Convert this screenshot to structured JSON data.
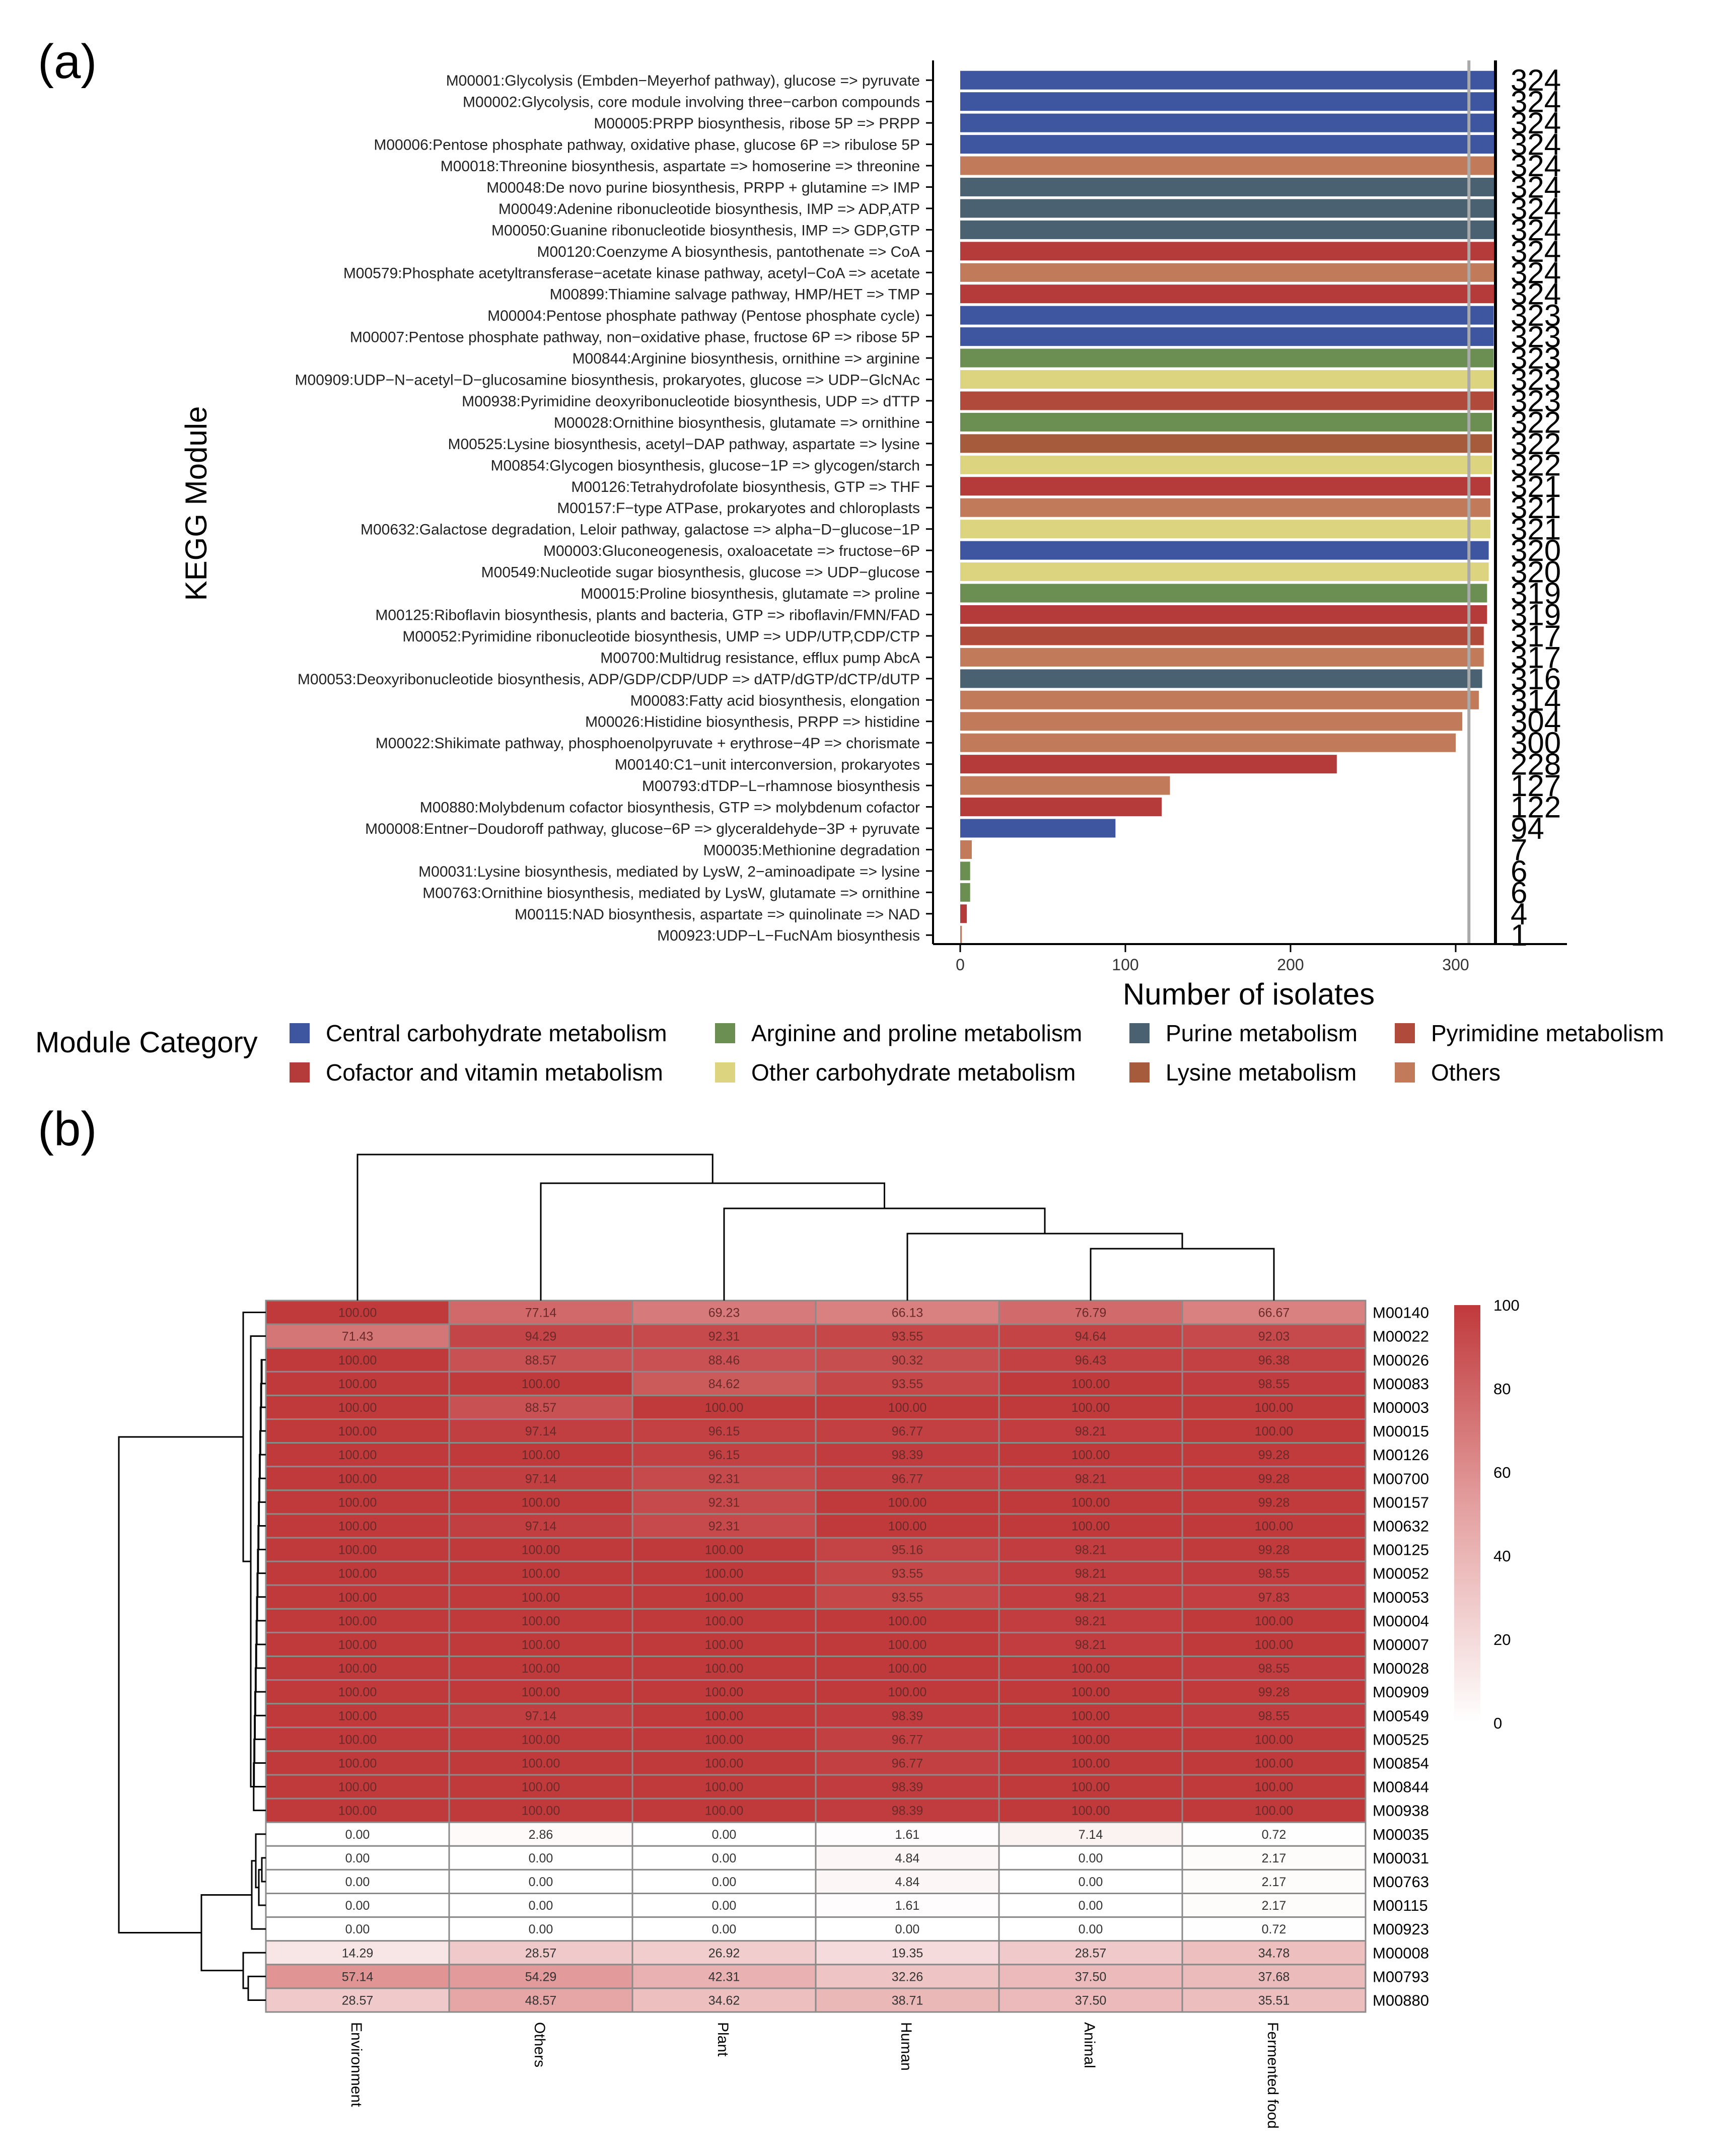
{
  "panel_a": {
    "label": "(a)"
  },
  "panel_b": {
    "label": "(b)"
  },
  "chart_data": [
    {
      "type": "bar",
      "orientation": "horizontal",
      "ylabel": "KEGG Module",
      "xlabel": "Number of isolates",
      "xlim": [
        0,
        360
      ],
      "xticks": [
        0,
        100,
        200,
        300
      ],
      "reference_line": 308,
      "legend_title": "Module Category",
      "legend_position": "bottom",
      "categories": [
        {
          "name": "Central carbohydrate metabolism",
          "color": "#3E56A0"
        },
        {
          "name": "Arginine and proline metabolism",
          "color": "#6B8E52"
        },
        {
          "name": "Purine metabolism",
          "color": "#4A6172"
        },
        {
          "name": "Pyrimidine metabolism",
          "color": "#B04A3A"
        },
        {
          "name": "Cofactor and vitamin metabolism",
          "color": "#B53A3A"
        },
        {
          "name": "Other carbohydrate metabolism",
          "color": "#DDD480"
        },
        {
          "name": "Lysine metabolism",
          "color": "#A65C3C"
        },
        {
          "name": "Others",
          "color": "#C27B5A"
        }
      ],
      "bars": [
        {
          "label": "M00001:Glycolysis (Embden−Meyerhof pathway), glucose => pyruvate",
          "value": 324,
          "category": "Central carbohydrate metabolism"
        },
        {
          "label": "M00002:Glycolysis, core module involving three−carbon compounds",
          "value": 324,
          "category": "Central carbohydrate metabolism"
        },
        {
          "label": "M00005:PRPP biosynthesis, ribose 5P => PRPP",
          "value": 324,
          "category": "Central carbohydrate metabolism"
        },
        {
          "label": "M00006:Pentose phosphate pathway, oxidative phase, glucose 6P => ribulose 5P",
          "value": 324,
          "category": "Central carbohydrate metabolism"
        },
        {
          "label": "M00018:Threonine biosynthesis, aspartate => homoserine => threonine",
          "value": 324,
          "category": "Others"
        },
        {
          "label": "M00048:De novo purine biosynthesis, PRPP + glutamine => IMP",
          "value": 324,
          "category": "Purine metabolism"
        },
        {
          "label": "M00049:Adenine ribonucleotide biosynthesis, IMP => ADP,ATP",
          "value": 324,
          "category": "Purine metabolism"
        },
        {
          "label": "M00050:Guanine ribonucleotide biosynthesis, IMP => GDP,GTP",
          "value": 324,
          "category": "Purine metabolism"
        },
        {
          "label": "M00120:Coenzyme A biosynthesis, pantothenate => CoA",
          "value": 324,
          "category": "Cofactor and vitamin metabolism"
        },
        {
          "label": "M00579:Phosphate acetyltransferase−acetate kinase pathway, acetyl−CoA => acetate",
          "value": 324,
          "category": "Others"
        },
        {
          "label": "M00899:Thiamine salvage pathway, HMP/HET => TMP",
          "value": 324,
          "category": "Cofactor and vitamin metabolism"
        },
        {
          "label": "M00004:Pentose phosphate pathway (Pentose phosphate cycle)",
          "value": 323,
          "category": "Central carbohydrate metabolism"
        },
        {
          "label": "M00007:Pentose phosphate pathway, non−oxidative phase, fructose 6P => ribose 5P",
          "value": 323,
          "category": "Central carbohydrate metabolism"
        },
        {
          "label": "M00844:Arginine biosynthesis, ornithine => arginine",
          "value": 323,
          "category": "Arginine and proline metabolism"
        },
        {
          "label": "M00909:UDP−N−acetyl−D−glucosamine biosynthesis, prokaryotes, glucose => UDP−GlcNAc",
          "value": 323,
          "category": "Other carbohydrate metabolism"
        },
        {
          "label": "M00938:Pyrimidine deoxyribonucleotide biosynthesis, UDP => dTTP",
          "value": 323,
          "category": "Pyrimidine metabolism"
        },
        {
          "label": "M00028:Ornithine biosynthesis, glutamate => ornithine",
          "value": 322,
          "category": "Arginine and proline metabolism"
        },
        {
          "label": "M00525:Lysine biosynthesis, acetyl−DAP pathway, aspartate => lysine",
          "value": 322,
          "category": "Lysine metabolism"
        },
        {
          "label": "M00854:Glycogen biosynthesis, glucose−1P => glycogen/starch",
          "value": 322,
          "category": "Other carbohydrate metabolism"
        },
        {
          "label": "M00126:Tetrahydrofolate biosynthesis, GTP => THF",
          "value": 321,
          "category": "Cofactor and vitamin metabolism"
        },
        {
          "label": "M00157:F−type ATPase, prokaryotes and chloroplasts",
          "value": 321,
          "category": "Others"
        },
        {
          "label": "M00632:Galactose degradation, Leloir pathway, galactose => alpha−D−glucose−1P",
          "value": 321,
          "category": "Other carbohydrate metabolism"
        },
        {
          "label": "M00003:Gluconeogenesis, oxaloacetate => fructose−6P",
          "value": 320,
          "category": "Central carbohydrate metabolism"
        },
        {
          "label": "M00549:Nucleotide sugar biosynthesis, glucose => UDP−glucose",
          "value": 320,
          "category": "Other carbohydrate metabolism"
        },
        {
          "label": "M00015:Proline biosynthesis, glutamate => proline",
          "value": 319,
          "category": "Arginine and proline metabolism"
        },
        {
          "label": "M00125:Riboflavin biosynthesis, plants and bacteria, GTP => riboflavin/FMN/FAD",
          "value": 319,
          "category": "Cofactor and vitamin metabolism"
        },
        {
          "label": "M00052:Pyrimidine ribonucleotide biosynthesis, UMP => UDP/UTP,CDP/CTP",
          "value": 317,
          "category": "Pyrimidine metabolism"
        },
        {
          "label": "M00700:Multidrug resistance, efflux pump AbcA",
          "value": 317,
          "category": "Others"
        },
        {
          "label": "M00053:Deoxyribonucleotide biosynthesis, ADP/GDP/CDP/UDP => dATP/dGTP/dCTP/dUTP",
          "value": 316,
          "category": "Purine metabolism"
        },
        {
          "label": "M00083:Fatty acid biosynthesis, elongation",
          "value": 314,
          "category": "Others"
        },
        {
          "label": "M00026:Histidine biosynthesis, PRPP => histidine",
          "value": 304,
          "category": "Others"
        },
        {
          "label": "M00022:Shikimate pathway, phosphoenolpyruvate + erythrose−4P => chorismate",
          "value": 300,
          "category": "Others"
        },
        {
          "label": "M00140:C1−unit interconversion, prokaryotes",
          "value": 228,
          "category": "Cofactor and vitamin metabolism"
        },
        {
          "label": "M00793:dTDP−L−rhamnose biosynthesis",
          "value": 127,
          "category": "Others"
        },
        {
          "label": "M00880:Molybdenum cofactor biosynthesis, GTP => molybdenum cofactor",
          "value": 122,
          "category": "Cofactor and vitamin metabolism"
        },
        {
          "label": "M00008:Entner−Doudoroff pathway, glucose−6P => glyceraldehyde−3P + pyruvate",
          "value": 94,
          "category": "Central carbohydrate metabolism"
        },
        {
          "label": "M00035:Methionine degradation",
          "value": 7,
          "category": "Others"
        },
        {
          "label": "M00031:Lysine biosynthesis, mediated by LysW, 2−aminoadipate => lysine",
          "value": 6,
          "category": "Arginine and proline metabolism"
        },
        {
          "label": "M00763:Ornithine biosynthesis, mediated by LysW, glutamate => ornithine",
          "value": 6,
          "category": "Arginine and proline metabolism"
        },
        {
          "label": "M00115:NAD biosynthesis, aspartate => quinolinate => NAD",
          "value": 4,
          "category": "Cofactor and vitamin metabolism"
        },
        {
          "label": "M00923:UDP−L−FucNAm biosynthesis",
          "value": 1,
          "category": "Others"
        }
      ]
    },
    {
      "type": "heatmap",
      "columns": [
        "Environment",
        "Others",
        "Plant",
        "Human",
        "Animal",
        "Fermented food"
      ],
      "rows": [
        "M00140",
        "M00022",
        "M00026",
        "M00083",
        "M00003",
        "M00015",
        "M00126",
        "M00700",
        "M00157",
        "M00632",
        "M00125",
        "M00052",
        "M00053",
        "M00004",
        "M00007",
        "M00028",
        "M00909",
        "M00549",
        "M00525",
        "M00854",
        "M00844",
        "M00938",
        "M00035",
        "M00031",
        "M00763",
        "M00115",
        "M00923",
        "M00008",
        "M00793",
        "M00880"
      ],
      "values": [
        [
          "100.00",
          "77.14",
          "69.23",
          "66.13",
          "76.79",
          "66.67"
        ],
        [
          "71.43",
          "94.29",
          "92.31",
          "93.55",
          "94.64",
          "92.03"
        ],
        [
          "100.00",
          "88.57",
          "88.46",
          "90.32",
          "96.43",
          "96.38"
        ],
        [
          "100.00",
          "100.00",
          "84.62",
          "93.55",
          "100.00",
          "98.55"
        ],
        [
          "100.00",
          "88.57",
          "100.00",
          "100.00",
          "100.00",
          "100.00"
        ],
        [
          "100.00",
          "97.14",
          "96.15",
          "96.77",
          "98.21",
          "100.00"
        ],
        [
          "100.00",
          "100.00",
          "96.15",
          "98.39",
          "100.00",
          "99.28"
        ],
        [
          "100.00",
          "97.14",
          "92.31",
          "96.77",
          "98.21",
          "99.28"
        ],
        [
          "100.00",
          "100.00",
          "92.31",
          "100.00",
          "100.00",
          "99.28"
        ],
        [
          "100.00",
          "97.14",
          "92.31",
          "100.00",
          "100.00",
          "100.00"
        ],
        [
          "100.00",
          "100.00",
          "100.00",
          "95.16",
          "98.21",
          "99.28"
        ],
        [
          "100.00",
          "100.00",
          "100.00",
          "93.55",
          "98.21",
          "98.55"
        ],
        [
          "100.00",
          "100.00",
          "100.00",
          "93.55",
          "98.21",
          "97.83"
        ],
        [
          "100.00",
          "100.00",
          "100.00",
          "100.00",
          "98.21",
          "100.00"
        ],
        [
          "100.00",
          "100.00",
          "100.00",
          "100.00",
          "98.21",
          "100.00"
        ],
        [
          "100.00",
          "100.00",
          "100.00",
          "100.00",
          "100.00",
          "98.55"
        ],
        [
          "100.00",
          "100.00",
          "100.00",
          "100.00",
          "100.00",
          "99.28"
        ],
        [
          "100.00",
          "97.14",
          "100.00",
          "98.39",
          "100.00",
          "98.55"
        ],
        [
          "100.00",
          "100.00",
          "100.00",
          "96.77",
          "100.00",
          "100.00"
        ],
        [
          "100.00",
          "100.00",
          "100.00",
          "96.77",
          "100.00",
          "100.00"
        ],
        [
          "100.00",
          "100.00",
          "100.00",
          "98.39",
          "100.00",
          "100.00"
        ],
        [
          "100.00",
          "100.00",
          "100.00",
          "98.39",
          "100.00",
          "100.00"
        ],
        [
          "0.00",
          "2.86",
          "0.00",
          "1.61",
          "7.14",
          "0.72"
        ],
        [
          "0.00",
          "0.00",
          "0.00",
          "4.84",
          "0.00",
          "2.17"
        ],
        [
          "0.00",
          "0.00",
          "0.00",
          "4.84",
          "0.00",
          "2.17"
        ],
        [
          "0.00",
          "0.00",
          "0.00",
          "1.61",
          "0.00",
          "2.17"
        ],
        [
          "0.00",
          "0.00",
          "0.00",
          "0.00",
          "0.00",
          "0.72"
        ],
        [
          "14.29",
          "28.57",
          "26.92",
          "19.35",
          "28.57",
          "34.78"
        ],
        [
          "57.14",
          "54.29",
          "42.31",
          "32.26",
          "37.50",
          "37.68"
        ],
        [
          "28.57",
          "48.57",
          "34.62",
          "38.71",
          "37.50",
          "35.51"
        ]
      ],
      "colorbar": {
        "min": 0,
        "max": 100,
        "ticks": [
          "0",
          "20",
          "40",
          "60",
          "80",
          "100"
        ],
        "low_color": "#FFFFFF",
        "high_color": "#C0393B"
      }
    }
  ]
}
